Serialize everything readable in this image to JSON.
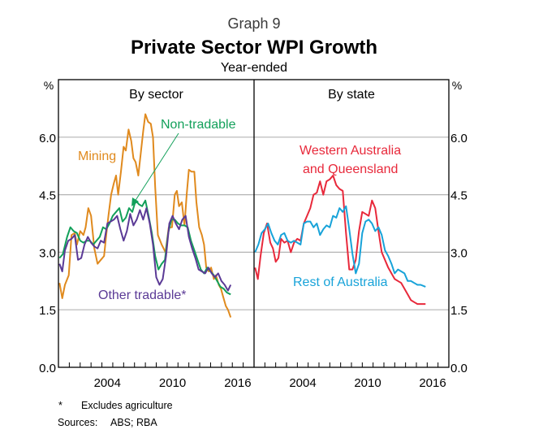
{
  "header": {
    "graph_number": "Graph 9",
    "title": "Private Sector WPI Growth",
    "subtitle": "Year-ended"
  },
  "footnotes": {
    "asterisk": "*",
    "asterisk_text": "Excludes agriculture",
    "sources_label": "Sources:",
    "sources_text": "ABS; RBA"
  },
  "colors": {
    "mining": "#E08A1E",
    "non_tradable": "#12A05A",
    "other_tradable": "#5B3A96",
    "wa_qld": "#E8293B",
    "rest_of_australia": "#18A3D9",
    "gridline": "#B4B4B4",
    "axis": "#000000"
  },
  "chart_data": [
    {
      "type": "line",
      "title": "By sector",
      "ylabel": "%",
      "ylim": [
        0,
        7.5
      ],
      "yticks": [
        0.0,
        1.5,
        3.0,
        4.5,
        6.0
      ],
      "ytick_labels": [
        "0.0",
        "1.5",
        "3.0",
        "4.5",
        "6.0"
      ],
      "xlim": [
        2000,
        2018
      ],
      "xtick_labels": [
        "2004",
        "2010",
        "2016"
      ],
      "grid": true,
      "series": [
        {
          "name": "Mining",
          "color_key": "mining",
          "x": [
            2000.1,
            2000.35,
            2000.6,
            2000.95,
            2001.2,
            2001.5,
            2001.7,
            2002.0,
            2002.3,
            2002.5,
            2002.75,
            2003.0,
            2003.3,
            2003.6,
            2003.9,
            2004.2,
            2004.4,
            2004.6,
            2004.85,
            2005.1,
            2005.3,
            2005.5,
            2005.75,
            2006.0,
            2006.2,
            2006.45,
            2006.7,
            2006.9,
            2007.1,
            2007.35,
            2007.6,
            2007.8,
            2008.0,
            2008.25,
            2008.5,
            2008.7,
            2008.9,
            2009.15,
            2009.5,
            2009.85,
            2010.15,
            2010.45,
            2010.7,
            2010.9,
            2011.1,
            2011.35,
            2011.6,
            2011.8,
            2012.0,
            2012.25,
            2012.5,
            2012.7,
            2012.95,
            2013.2,
            2013.4,
            2013.6,
            2013.85,
            2014.05,
            2014.3,
            2014.5,
            2014.75,
            2014.95,
            2015.15,
            2015.4,
            2015.6,
            2015.85
          ],
          "values": [
            2.2,
            1.8,
            2.15,
            2.4,
            3.45,
            3.5,
            3.2,
            3.55,
            3.45,
            3.65,
            4.15,
            3.95,
            3.1,
            2.7,
            2.8,
            2.9,
            3.45,
            3.95,
            4.5,
            4.8,
            5.0,
            4.5,
            5.1,
            5.75,
            5.65,
            6.2,
            5.9,
            5.45,
            5.35,
            5.0,
            5.65,
            6.15,
            6.6,
            6.4,
            6.35,
            6.0,
            4.7,
            3.45,
            3.2,
            3.0,
            3.65,
            3.65,
            4.5,
            4.6,
            4.2,
            4.3,
            3.7,
            4.5,
            5.15,
            5.1,
            5.1,
            4.3,
            3.65,
            3.45,
            3.2,
            2.6,
            2.5,
            2.6,
            2.3,
            2.4,
            2.15,
            2.05,
            1.85,
            1.6,
            1.5,
            1.3
          ]
        },
        {
          "name": "Non-tradable",
          "color_key": "non_tradable",
          "x": [
            2000.1,
            2000.4,
            2000.8,
            2001.1,
            2001.4,
            2001.7,
            2002.0,
            2002.3,
            2002.6,
            2002.9,
            2003.2,
            2003.5,
            2003.8,
            2004.1,
            2004.4,
            2004.7,
            2005.0,
            2005.3,
            2005.6,
            2005.9,
            2006.2,
            2006.5,
            2006.8,
            2007.1,
            2007.4,
            2007.7,
            2008.0,
            2008.3,
            2008.6,
            2008.9,
            2009.2,
            2009.5,
            2009.8,
            2010.1,
            2010.4,
            2010.7,
            2011.0,
            2011.3,
            2011.6,
            2011.9,
            2012.2,
            2012.5,
            2012.8,
            2013.1,
            2013.4,
            2013.7,
            2014.0,
            2014.3,
            2014.6,
            2014.9,
            2015.2,
            2015.5,
            2015.85
          ],
          "values": [
            2.85,
            2.95,
            3.4,
            3.65,
            3.55,
            3.5,
            3.3,
            3.25,
            3.3,
            3.3,
            3.2,
            3.3,
            3.4,
            3.65,
            3.6,
            3.75,
            3.95,
            4.05,
            4.15,
            3.8,
            3.9,
            4.15,
            4.05,
            4.35,
            4.25,
            4.2,
            4.35,
            3.95,
            3.5,
            2.9,
            2.55,
            2.7,
            2.8,
            3.5,
            3.85,
            3.85,
            3.75,
            3.7,
            3.7,
            3.65,
            3.3,
            3.05,
            2.8,
            2.55,
            2.45,
            2.6,
            2.5,
            2.4,
            2.25,
            2.1,
            2.05,
            1.95,
            1.9
          ]
        },
        {
          "name": "Other tradable*",
          "color_key": "other_tradable",
          "x": [
            2000.1,
            2000.35,
            2000.6,
            2000.9,
            2001.2,
            2001.5,
            2001.8,
            2002.1,
            2002.4,
            2002.7,
            2003.0,
            2003.3,
            2003.6,
            2003.9,
            2004.2,
            2004.5,
            2004.8,
            2005.1,
            2005.4,
            2005.7,
            2006.0,
            2006.3,
            2006.6,
            2006.9,
            2007.2,
            2007.5,
            2007.8,
            2008.1,
            2008.4,
            2008.7,
            2009.0,
            2009.3,
            2009.6,
            2009.9,
            2010.2,
            2010.5,
            2010.8,
            2011.1,
            2011.4,
            2011.7,
            2012.0,
            2012.3,
            2012.6,
            2012.9,
            2013.2,
            2013.5,
            2013.8,
            2014.1,
            2014.4,
            2014.7,
            2015.0,
            2015.3,
            2015.6,
            2015.85
          ],
          "values": [
            2.7,
            2.5,
            3.05,
            3.3,
            3.35,
            3.45,
            2.8,
            2.85,
            3.2,
            3.4,
            3.25,
            3.15,
            3.1,
            3.3,
            3.25,
            3.75,
            3.8,
            3.85,
            3.95,
            3.6,
            3.3,
            3.55,
            4.0,
            3.7,
            3.85,
            4.1,
            3.85,
            4.15,
            3.75,
            3.2,
            2.35,
            2.15,
            2.3,
            2.9,
            3.75,
            3.95,
            3.75,
            3.6,
            3.85,
            3.95,
            3.4,
            3.1,
            2.85,
            2.55,
            2.5,
            2.45,
            2.6,
            2.45,
            2.35,
            2.45,
            2.25,
            2.15,
            2.0,
            2.15
          ]
        }
      ],
      "annotations": [
        {
          "text": "Mining",
          "color_key": "mining",
          "position": "upper-left"
        },
        {
          "text": "Non-tradable",
          "color_key": "non_tradable",
          "position": "top-right",
          "arrow": true
        },
        {
          "text": "Other tradable*",
          "color_key": "other_tradable",
          "position": "lower-middle"
        }
      ]
    },
    {
      "type": "line",
      "title": "By state",
      "ylabel": "%",
      "ylim": [
        0,
        7.5
      ],
      "yticks": [
        0.0,
        1.5,
        3.0,
        4.5,
        6.0
      ],
      "ytick_labels": [
        "0.0",
        "1.5",
        "3.0",
        "4.5",
        "6.0"
      ],
      "xlim": [
        2000,
        2018
      ],
      "xtick_labels": [
        "2004",
        "2010",
        "2016"
      ],
      "grid": true,
      "series": [
        {
          "name": "Western Australia and Queensland",
          "color_key": "wa_qld",
          "x": [
            2000.1,
            2000.35,
            2000.6,
            2000.9,
            2001.2,
            2001.5,
            2001.75,
            2002.0,
            2002.25,
            2002.5,
            2002.8,
            2003.1,
            2003.4,
            2003.7,
            2004.0,
            2004.3,
            2004.6,
            2004.9,
            2005.2,
            2005.5,
            2005.8,
            2006.1,
            2006.4,
            2006.7,
            2007.0,
            2007.3,
            2007.6,
            2007.9,
            2008.2,
            2008.5,
            2008.8,
            2009.1,
            2009.4,
            2009.7,
            2010.0,
            2010.3,
            2010.6,
            2010.9,
            2011.2,
            2011.5,
            2011.8,
            2012.1,
            2012.4,
            2012.7,
            2013.0,
            2013.3,
            2013.6,
            2013.9,
            2014.2,
            2014.5,
            2014.8,
            2015.1,
            2015.4,
            2015.85
          ],
          "values": [
            2.6,
            2.3,
            2.9,
            3.5,
            3.75,
            3.25,
            3.1,
            2.75,
            2.85,
            3.35,
            3.25,
            3.3,
            3.0,
            3.25,
            3.35,
            3.3,
            3.75,
            3.95,
            4.15,
            4.5,
            4.55,
            4.85,
            4.5,
            4.85,
            4.9,
            5.0,
            4.75,
            4.65,
            4.6,
            3.5,
            2.55,
            2.55,
            2.8,
            3.55,
            4.05,
            4.0,
            3.95,
            4.35,
            4.15,
            3.55,
            3.0,
            2.8,
            2.6,
            2.45,
            2.3,
            2.25,
            2.2,
            2.05,
            1.9,
            1.75,
            1.7,
            1.65,
            1.65,
            1.65
          ]
        },
        {
          "name": "Rest of Australia",
          "color_key": "rest_of_australia",
          "x": [
            2000.1,
            2000.4,
            2000.7,
            2001.0,
            2001.3,
            2001.6,
            2001.9,
            2002.2,
            2002.5,
            2002.8,
            2003.1,
            2003.4,
            2003.7,
            2004.0,
            2004.3,
            2004.6,
            2004.9,
            2005.2,
            2005.5,
            2005.8,
            2006.1,
            2006.4,
            2006.7,
            2007.0,
            2007.3,
            2007.6,
            2007.9,
            2008.2,
            2008.5,
            2008.8,
            2009.1,
            2009.4,
            2009.7,
            2010.0,
            2010.3,
            2010.6,
            2010.9,
            2011.2,
            2011.5,
            2011.8,
            2012.1,
            2012.4,
            2012.7,
            2013.0,
            2013.3,
            2013.6,
            2013.9,
            2014.2,
            2014.5,
            2014.8,
            2015.1,
            2015.4,
            2015.85
          ],
          "values": [
            3.0,
            3.2,
            3.5,
            3.6,
            3.75,
            3.5,
            3.3,
            3.2,
            3.45,
            3.5,
            3.3,
            3.25,
            3.3,
            3.25,
            3.2,
            3.75,
            3.8,
            3.8,
            3.65,
            3.75,
            3.45,
            3.6,
            3.7,
            3.65,
            3.95,
            3.9,
            4.15,
            4.05,
            4.2,
            3.6,
            2.95,
            2.45,
            2.7,
            3.5,
            3.8,
            3.85,
            3.75,
            3.55,
            3.65,
            3.45,
            3.05,
            2.9,
            2.7,
            2.45,
            2.55,
            2.5,
            2.45,
            2.25,
            2.25,
            2.2,
            2.15,
            2.15,
            2.1
          ]
        }
      ],
      "annotations": [
        {
          "text": "Western Australia",
          "color_key": "wa_qld",
          "position": "top"
        },
        {
          "text": "and Queensland",
          "color_key": "wa_qld",
          "position": "top"
        },
        {
          "text": "Rest of Australia",
          "color_key": "rest_of_australia",
          "position": "lower-middle"
        }
      ]
    }
  ]
}
